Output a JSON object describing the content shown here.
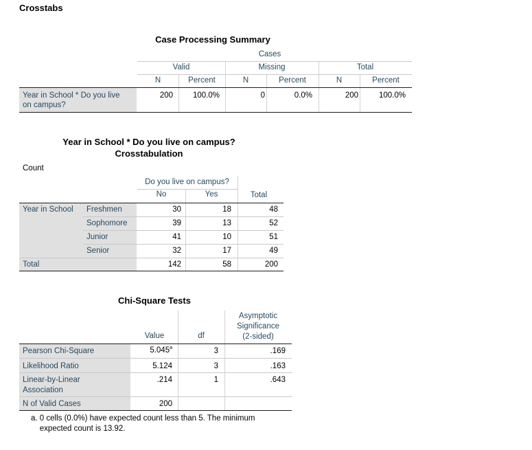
{
  "page_title": "Crosstabs",
  "summary": {
    "title": "Case Processing Summary",
    "cases_label": "Cases",
    "groups": [
      "Valid",
      "Missing",
      "Total"
    ],
    "n_label": "N",
    "percent_label": "Percent",
    "row_label": "Year in School * Do you live on campus?",
    "row_label_line1": "Year in School * Do you live",
    "row_label_line2": "on campus?",
    "values": [
      "200",
      "100.0%",
      "0",
      "0.0%",
      "200",
      "100.0%"
    ]
  },
  "crosstab": {
    "title_line1": "Year in School * Do you live on campus?",
    "title_line2": "Crosstabulation",
    "count_label": "Count",
    "col_group": "Do you live on campus?",
    "col_no": "No",
    "col_yes": "Yes",
    "col_total": "Total",
    "row_group": "Year in School",
    "rows": [
      {
        "label": "Freshmen",
        "no": "30",
        "yes": "18",
        "total": "48"
      },
      {
        "label": "Sophomore",
        "no": "39",
        "yes": "13",
        "total": "52"
      },
      {
        "label": "Junior",
        "no": "41",
        "yes": "10",
        "total": "51"
      },
      {
        "label": "Senior",
        "no": "32",
        "yes": "17",
        "total": "49"
      }
    ],
    "total_row": {
      "label": "Total",
      "no": "142",
      "yes": "58",
      "total": "200"
    }
  },
  "chisq": {
    "title": "Chi-Square Tests",
    "col_value": "Value",
    "col_df": "df",
    "col_sig_line1": "Asymptotic",
    "col_sig_line2": "Significance",
    "col_sig_line3": "(2-sided)",
    "rows": [
      {
        "label": "Pearson Chi-Square",
        "value": "5.045",
        "sup": "a",
        "df": "3",
        "sig": ".169"
      },
      {
        "label": "Likelihood Ratio",
        "value": "5.124",
        "df": "3",
        "sig": ".163"
      },
      {
        "label": "Linear-by-Linear Association",
        "label_line1": "Linear-by-Linear",
        "label_line2": "Association",
        "value": ".214",
        "df": "1",
        "sig": ".643"
      },
      {
        "label": "N of Valid Cases",
        "value": "200"
      }
    ],
    "footnote_line1": "a. 0 cells (0.0%) have expected count less than 5. The minimum",
    "footnote_line2": "expected count is 13.92."
  }
}
